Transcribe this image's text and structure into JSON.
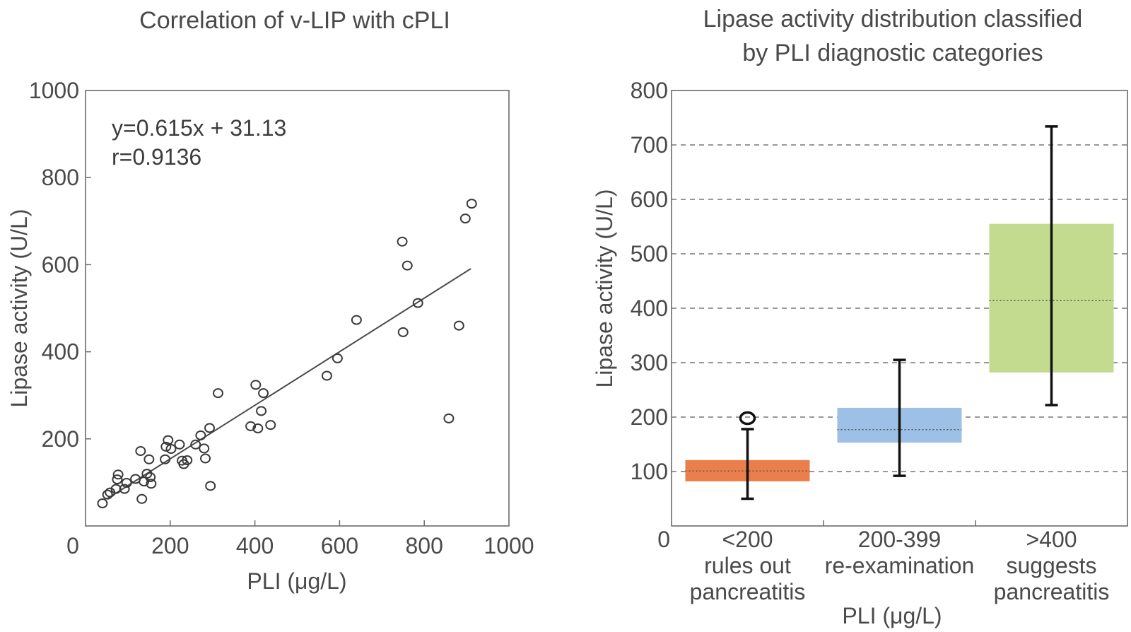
{
  "chart_data": [
    {
      "type": "scatter",
      "title": "Correlation of v-LIP with cPLI",
      "xlabel": "PLI (μg/L)",
      "ylabel": "Lipase activity (U/L)",
      "xlim": [
        0,
        1000
      ],
      "ylim": [
        0,
        1000
      ],
      "xticks": [
        "0",
        "200",
        "400",
        "600",
        "800",
        "1000"
      ],
      "yticks": [
        "200",
        "400",
        "600",
        "800",
        "1000"
      ],
      "grid": false,
      "annotations": [
        "y=0.615x + 31.13",
        "r=0.9136"
      ],
      "fit_line": {
        "slope": 0.615,
        "intercept": 31.13,
        "x_range": [
          50,
          910
        ]
      },
      "points": [
        {
          "x": 40,
          "y": 52
        },
        {
          "x": 52,
          "y": 72
        },
        {
          "x": 58,
          "y": 77
        },
        {
          "x": 72,
          "y": 85
        },
        {
          "x": 75,
          "y": 107
        },
        {
          "x": 77,
          "y": 118
        },
        {
          "x": 92,
          "y": 85
        },
        {
          "x": 97,
          "y": 99
        },
        {
          "x": 118,
          "y": 108
        },
        {
          "x": 130,
          "y": 172
        },
        {
          "x": 133,
          "y": 62
        },
        {
          "x": 138,
          "y": 102
        },
        {
          "x": 145,
          "y": 120
        },
        {
          "x": 150,
          "y": 153
        },
        {
          "x": 153,
          "y": 112
        },
        {
          "x": 155,
          "y": 97
        },
        {
          "x": 188,
          "y": 153
        },
        {
          "x": 190,
          "y": 182
        },
        {
          "x": 195,
          "y": 197
        },
        {
          "x": 202,
          "y": 177
        },
        {
          "x": 222,
          "y": 187
        },
        {
          "x": 228,
          "y": 150
        },
        {
          "x": 232,
          "y": 142
        },
        {
          "x": 240,
          "y": 151
        },
        {
          "x": 260,
          "y": 187
        },
        {
          "x": 272,
          "y": 208
        },
        {
          "x": 280,
          "y": 178
        },
        {
          "x": 283,
          "y": 155
        },
        {
          "x": 293,
          "y": 225
        },
        {
          "x": 295,
          "y": 92
        },
        {
          "x": 313,
          "y": 305
        },
        {
          "x": 390,
          "y": 229
        },
        {
          "x": 402,
          "y": 324
        },
        {
          "x": 407,
          "y": 224
        },
        {
          "x": 415,
          "y": 264
        },
        {
          "x": 420,
          "y": 305
        },
        {
          "x": 437,
          "y": 232
        },
        {
          "x": 570,
          "y": 345
        },
        {
          "x": 595,
          "y": 385
        },
        {
          "x": 640,
          "y": 473
        },
        {
          "x": 748,
          "y": 653
        },
        {
          "x": 750,
          "y": 445
        },
        {
          "x": 760,
          "y": 598
        },
        {
          "x": 785,
          "y": 512
        },
        {
          "x": 858,
          "y": 247
        },
        {
          "x": 882,
          "y": 460
        },
        {
          "x": 897,
          "y": 706
        },
        {
          "x": 912,
          "y": 740
        }
      ]
    },
    {
      "type": "box",
      "title_lines": [
        "Lipase activity distribution classified",
        "by PLI diagnostic categories"
      ],
      "xlabel": "PLI (μg/L)",
      "ylabel": "Lipase activity (U/L)",
      "ylim": [
        0,
        800
      ],
      "yticks": [
        "0",
        "100",
        "200",
        "300",
        "400",
        "500",
        "600",
        "700",
        "800"
      ],
      "grid": "dashed horizontal",
      "categories": [
        {
          "lines": [
            "<200",
            "rules out",
            "pancreatitis"
          ],
          "color": "#ea7f4b",
          "q1": 82,
          "q3": 121,
          "median": 101,
          "whisker_low": 50,
          "whisker_high": 178,
          "outliers": [
            198
          ]
        },
        {
          "lines": [
            "200-399",
            "re-examination"
          ],
          "color": "#9dc0e6",
          "q1": 153,
          "q3": 217,
          "median": 177,
          "whisker_low": 92,
          "whisker_high": 305,
          "outliers": []
        },
        {
          "lines": [
            ">400",
            "suggests",
            "pancreatitis"
          ],
          "color": "#c3db8e",
          "q1": 282,
          "q3": 555,
          "median": 414,
          "whisker_low": 222,
          "whisker_high": 734,
          "outliers": []
        }
      ]
    }
  ]
}
